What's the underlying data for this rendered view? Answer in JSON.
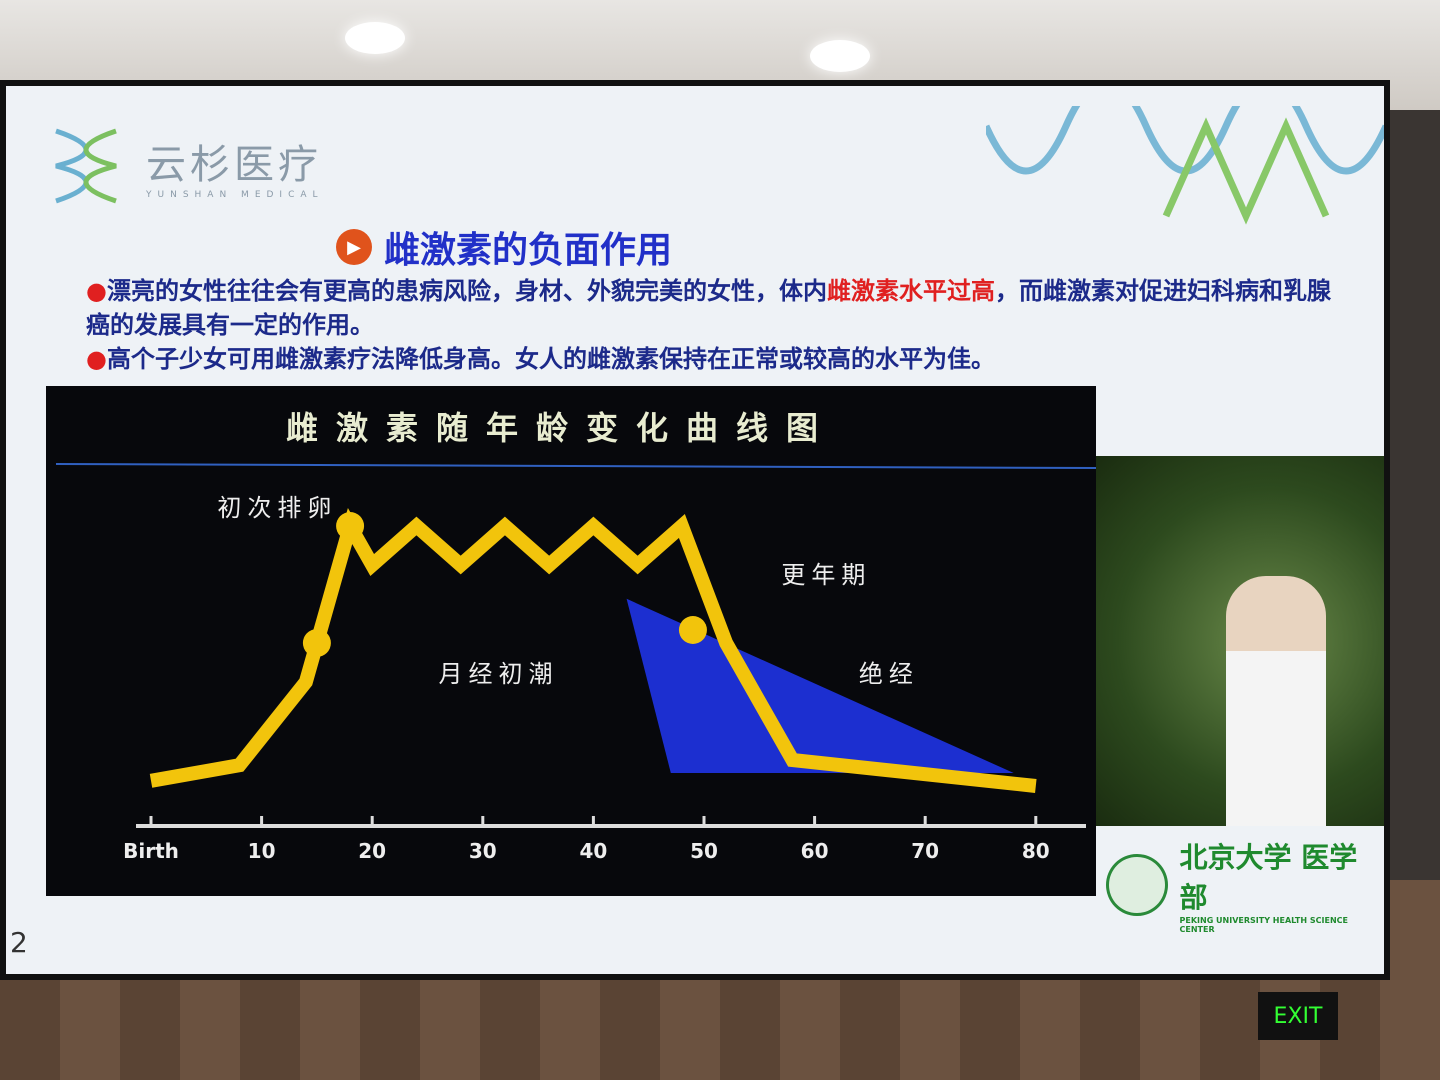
{
  "logo": {
    "name": "云杉医疗",
    "subtitle": "YUNSHAN MEDICAL"
  },
  "slide_title": "雌激素的负面作用",
  "bullets": [
    {
      "pre": "漂亮的女性往往会有更高的患病风险，身材、外貌完美的女性，体内",
      "highlight": "雌激素水平过高",
      "post": "，而雌激素对促进妇科病和乳腺癌的发展具有一定的作用。"
    },
    {
      "pre": "高个子少女可用雌激素疗法降低身高。女人的雌激素保持在正常或较高的水平为佳。"
    }
  ],
  "colors": {
    "title": "#2130c8",
    "text": "#1c2a8a",
    "highlight": "#e02020",
    "curve": "#f2c40c",
    "menopause_area": "#1c2fd0"
  },
  "chart_data": {
    "type": "line",
    "title": "雌激素随年龄变化曲线图",
    "x_tick_labels": [
      "Birth",
      "10",
      "20",
      "30",
      "40",
      "50",
      "60",
      "70",
      "80"
    ],
    "x_ticks": [
      0,
      10,
      20,
      30,
      40,
      50,
      60,
      70,
      80
    ],
    "xlim": [
      0,
      80
    ],
    "ylim": [
      0,
      100
    ],
    "series": [
      {
        "x": [
          0,
          8,
          14,
          16,
          18,
          20,
          24,
          28,
          32,
          36,
          40,
          44,
          48,
          52,
          58,
          80
        ],
        "y": [
          2,
          8,
          40,
          70,
          100,
          85,
          100,
          85,
          100,
          85,
          100,
          85,
          100,
          55,
          10,
          0
        ]
      }
    ],
    "area": {
      "x": [
        43,
        47,
        78
      ],
      "y": [
        72,
        5,
        5
      ]
    },
    "annotations": [
      {
        "text": "初次排卵",
        "x": 6,
        "y": 100
      },
      {
        "text": "月经初潮",
        "x": 26,
        "y": 40
      },
      {
        "text": "更年期",
        "x": 57,
        "y": 78
      },
      {
        "text": "绝经",
        "x": 64,
        "y": 40
      }
    ]
  },
  "pku": {
    "name": "北京大学 医学部",
    "english": "PEKING UNIVERSITY HEALTH SCIENCE CENTER"
  },
  "page_number": "2",
  "exit_sign": "EXIT"
}
